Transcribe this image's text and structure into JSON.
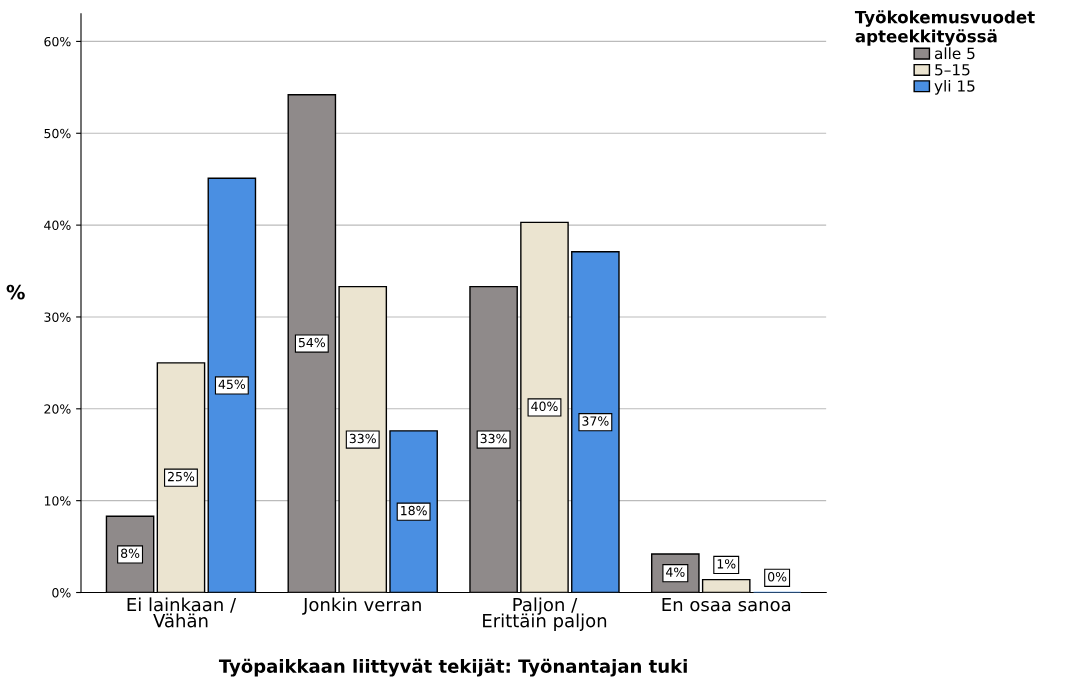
{
  "chart_data": {
    "type": "bar",
    "xlabel": "Työpaikkaan liittyvät tekijät: Työnantajan tuki",
    "ylabel": "%",
    "legend_title": "Työkokemusvuodet\napteekkityössä",
    "categories": [
      "Ei lainkaan /\nVähän",
      "Jonkin verran",
      "Paljon /\nErittäin paljon",
      "En osaa sanoa"
    ],
    "series": [
      {
        "name": "alle 5",
        "color": "#8f8a8a",
        "values": [
          8.3,
          54.2,
          33.3,
          4.2
        ],
        "value_labels": [
          "8%",
          "54%",
          "33%",
          "4%"
        ]
      },
      {
        "name": "5–15",
        "color": "#ebe4d0",
        "values": [
          25.0,
          33.3,
          40.3,
          1.4
        ],
        "value_labels": [
          "25%",
          "33%",
          "40%",
          "1%"
        ]
      },
      {
        "name": "yli 15",
        "color": "#4a8fe2",
        "values": [
          45.1,
          17.6,
          37.1,
          0
        ],
        "value_labels": [
          "45%",
          "18%",
          "37%",
          "0%"
        ]
      }
    ],
    "ylim": [
      0,
      63
    ],
    "yticks": [
      {
        "value": 0,
        "label": "0%"
      },
      {
        "value": 10,
        "label": "10%"
      },
      {
        "value": 20,
        "label": "20%"
      },
      {
        "value": 30,
        "label": "30%"
      },
      {
        "value": 40,
        "label": "40%"
      },
      {
        "value": 50,
        "label": "50%"
      },
      {
        "value": 60,
        "label": "60%"
      }
    ],
    "grid": "y",
    "legend": "top right"
  }
}
